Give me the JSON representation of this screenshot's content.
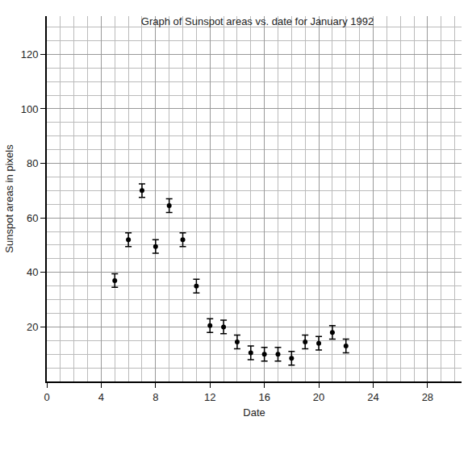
{
  "chart_data": {
    "type": "scatter",
    "title": "Graph of Sunspot areas vs. date for January 1992",
    "x_label": "Date",
    "y_label": "Sunspot areas in pixels",
    "x": [
      5,
      6,
      7,
      8,
      9,
      10,
      11,
      12,
      13,
      14,
      15,
      16,
      17,
      18,
      19,
      20,
      21,
      22
    ],
    "values": [
      37,
      52,
      70,
      49.5,
      64.5,
      52,
      35,
      20.5,
      20,
      14.5,
      10.5,
      10,
      10,
      8.5,
      14.5,
      14,
      18,
      13
    ],
    "errors": [
      2.5,
      2.5,
      2.5,
      2.5,
      2.5,
      2.5,
      2.5,
      2.5,
      2.5,
      2.5,
      2.5,
      2.5,
      2.5,
      2.5,
      2.5,
      2.5,
      2.5,
      2.5
    ],
    "color": "#000000",
    "marker": "circle",
    "xlim": [
      0,
      30.5
    ],
    "ylim": [
      0,
      134
    ],
    "xticks": [
      0,
      4,
      8,
      12,
      16,
      20,
      24,
      28
    ],
    "yticks": [
      20,
      40,
      60,
      80,
      100,
      120
    ],
    "grid": true
  }
}
